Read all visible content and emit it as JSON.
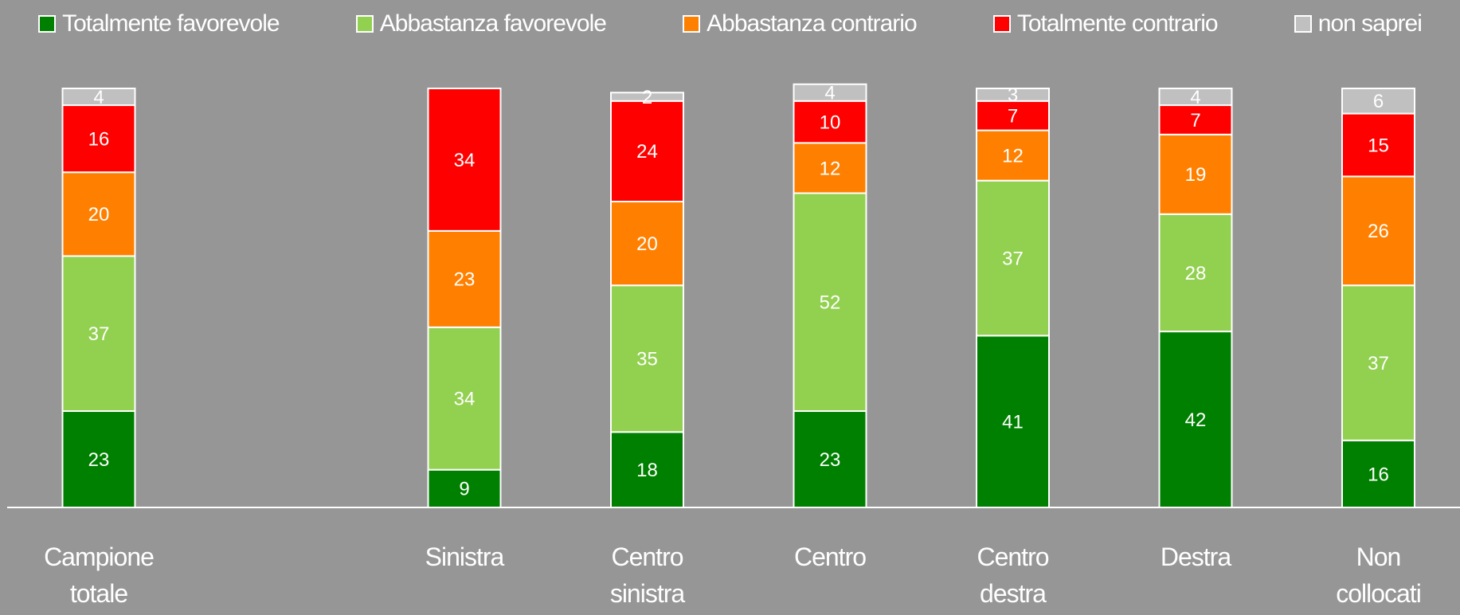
{
  "chart_data": {
    "type": "stacked_bar",
    "categories": [
      "Campione totale",
      null,
      "Sinistra",
      "Centro sinistra",
      "Centro",
      "Centro destra",
      "Destra",
      "Non collocati"
    ],
    "ylim": [
      0,
      100
    ],
    "series": [
      {
        "name": "Totalmente favorevole",
        "color": "#008000",
        "values": [
          23,
          null,
          9,
          18,
          23,
          41,
          42,
          16
        ]
      },
      {
        "name": "Abbastanza favorevole",
        "color": "#92d050",
        "values": [
          37,
          null,
          34,
          35,
          52,
          37,
          28,
          37
        ]
      },
      {
        "name": "Abbastanza contrario",
        "color": "#ff8000",
        "values": [
          20,
          null,
          23,
          20,
          12,
          12,
          19,
          26
        ]
      },
      {
        "name": "Totalmente contrario",
        "color": "#ff0000",
        "values": [
          16,
          null,
          34,
          24,
          10,
          7,
          7,
          15
        ]
      },
      {
        "name": "non saprei",
        "color": "#c0c0c0",
        "values": [
          4,
          null,
          null,
          2,
          4,
          3,
          4,
          6
        ]
      }
    ]
  }
}
